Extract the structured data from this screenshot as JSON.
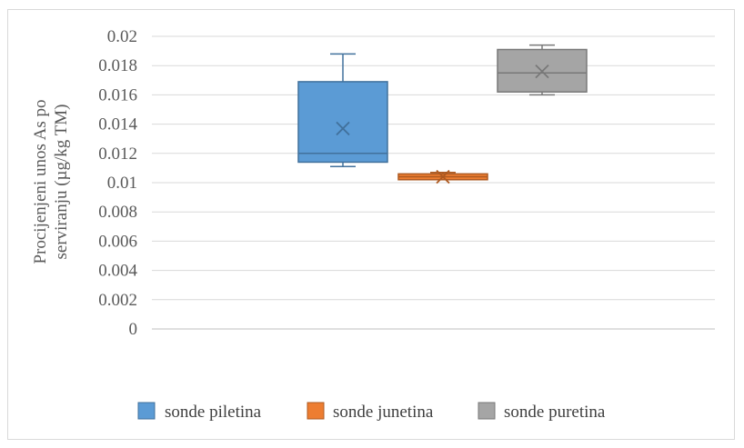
{
  "chart_data": {
    "type": "box",
    "title": "",
    "xlabel": "",
    "ylabel_lines": [
      "Procijenjeni unos As po",
      "serviranju  (µg/kg TM)"
    ],
    "ylim": [
      0,
      0.02
    ],
    "yticks": [
      0,
      0.002,
      0.004,
      0.006,
      0.008,
      0.01,
      0.012,
      0.014,
      0.016,
      0.018,
      0.02
    ],
    "ytick_labels": [
      "0",
      "0.002",
      "0.004",
      "0.006",
      "0.008",
      "0.01",
      "0.012",
      "0.014",
      "0.016",
      "0.018",
      "0.02"
    ],
    "grid": true,
    "legend_position": "bottom",
    "series": [
      {
        "name": "sonde piletina",
        "color": "#5B9BD5",
        "border": "#41719C",
        "min": 0.0111,
        "q1": 0.0114,
        "median": 0.012,
        "q3": 0.0169,
        "max": 0.0188,
        "mean": 0.0137
      },
      {
        "name": "sonde junetina",
        "color": "#ED7D31",
        "border": "#AE5A21",
        "min": 0.0102,
        "q1": 0.0102,
        "median": 0.0104,
        "q3": 0.0106,
        "max": 0.0107,
        "mean": 0.0104
      },
      {
        "name": "sonde puretina",
        "color": "#A5A5A5",
        "border": "#787878",
        "min": 0.016,
        "q1": 0.0162,
        "median": 0.0175,
        "q3": 0.0191,
        "max": 0.0194,
        "mean": 0.0176
      }
    ]
  }
}
